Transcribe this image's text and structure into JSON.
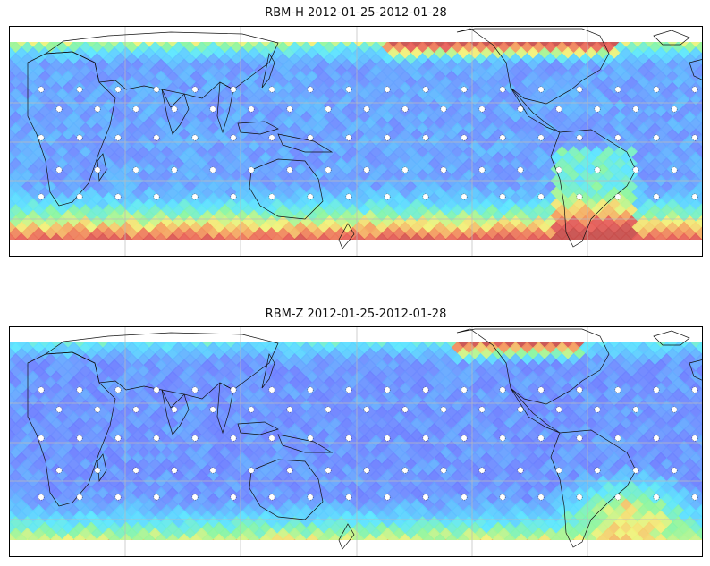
{
  "panels": [
    {
      "id": "rbm-h",
      "title": "RBM-H 2012-01-25-2012-01-28"
    },
    {
      "id": "rbm-z",
      "title": "RBM-Z 2012-01-25-2012-01-28"
    }
  ],
  "colors": {
    "deep_blue": "#6a6cff",
    "blue": "#6f8cff",
    "light_blue": "#5fbfff",
    "cyan": "#5ce6ff",
    "green": "#8af5a0",
    "yellow": "#f2f27a",
    "orange": "#f4a060",
    "red": "#e8605a",
    "dark_red": "#c8504e",
    "coast": "#111111",
    "grid": "#bbbbbb"
  }
}
